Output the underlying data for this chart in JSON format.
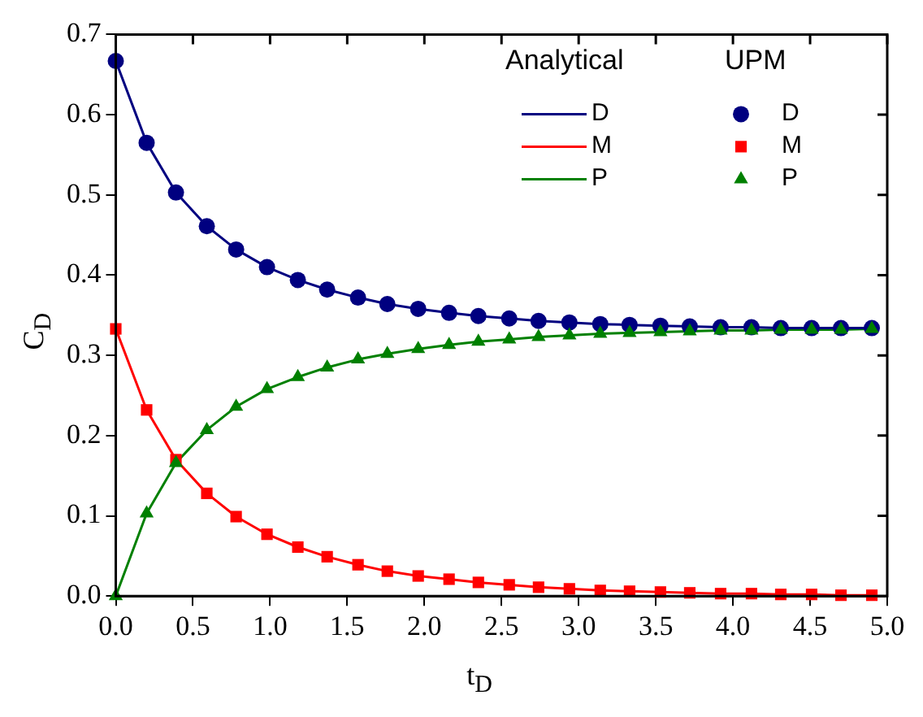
{
  "chart_data": {
    "type": "line",
    "xlabel": "t$_{D}$",
    "ylabel": "C$_{D}$",
    "x": [
      0,
      0.2,
      0.39,
      0.59,
      0.78,
      0.98,
      1.18,
      1.37,
      1.57,
      1.76,
      1.96,
      2.16,
      2.35,
      2.55,
      2.74,
      2.94,
      3.14,
      3.33,
      3.53,
      3.72,
      3.92,
      4.12,
      4.31,
      4.51,
      4.7,
      4.9
    ],
    "series": [
      {
        "name": "D",
        "marker": "none",
        "color": "#000080",
        "values": [
          0.667,
          0.565,
          0.503,
          0.461,
          0.432,
          0.41,
          0.394,
          0.382,
          0.372,
          0.364,
          0.358,
          0.353,
          0.349,
          0.346,
          0.343,
          0.341,
          0.339,
          0.338,
          0.337,
          0.336,
          0.335,
          0.335,
          0.334,
          0.334,
          0.334,
          0.334
        ]
      },
      {
        "name": "M",
        "marker": "none",
        "color": "#ff0000",
        "values": [
          0.333,
          0.232,
          0.17,
          0.128,
          0.099,
          0.077,
          0.061,
          0.049,
          0.039,
          0.031,
          0.025,
          0.021,
          0.017,
          0.014,
          0.011,
          0.009,
          0.007,
          0.006,
          0.005,
          0.004,
          0.003,
          0.003,
          0.002,
          0.002,
          0.001,
          0.001
        ]
      },
      {
        "name": "P",
        "marker": "none",
        "color": "#008000",
        "values": [
          0,
          0.103,
          0.166,
          0.207,
          0.236,
          0.258,
          0.273,
          0.285,
          0.295,
          0.302,
          0.308,
          0.313,
          0.317,
          0.32,
          0.323,
          0.325,
          0.327,
          0.328,
          0.329,
          0.33,
          0.331,
          0.331,
          0.332,
          0.332,
          0.332,
          0.333
        ]
      },
      {
        "name": "D",
        "type": "scatter",
        "marker": "circle",
        "color": "#000080",
        "values": [
          0.667,
          0.565,
          0.503,
          0.461,
          0.432,
          0.41,
          0.394,
          0.382,
          0.372,
          0.364,
          0.358,
          0.353,
          0.349,
          0.346,
          0.343,
          0.341,
          0.339,
          0.338,
          0.337,
          0.336,
          0.335,
          0.335,
          0.334,
          0.334,
          0.334,
          0.334
        ]
      },
      {
        "name": "M",
        "type": "scatter",
        "marker": "square",
        "color": "#ff0000",
        "values": [
          0.333,
          0.232,
          0.17,
          0.128,
          0.099,
          0.077,
          0.061,
          0.049,
          0.039,
          0.031,
          0.025,
          0.021,
          0.017,
          0.014,
          0.011,
          0.009,
          0.007,
          0.006,
          0.005,
          0.004,
          0.003,
          0.003,
          0.002,
          0.002,
          0.001,
          0.001
        ]
      },
      {
        "name": "P",
        "type": "scatter",
        "marker": "triangle",
        "color": "#008000",
        "values": [
          0,
          0.103,
          0.166,
          0.207,
          0.236,
          0.258,
          0.273,
          0.285,
          0.295,
          0.302,
          0.308,
          0.313,
          0.317,
          0.32,
          0.323,
          0.325,
          0.327,
          0.328,
          0.329,
          0.33,
          0.331,
          0.331,
          0.332,
          0.332,
          0.332,
          0.333
        ]
      }
    ],
    "annotations": [
      "Analytical",
      "UPM"
    ],
    "legend": "top right",
    "grid": false,
    "xlim": [
      0,
      5
    ],
    "xticks": [
      {
        "value": 0,
        "label": "0.0"
      },
      {
        "value": 0.5,
        "label": "0.5"
      },
      {
        "value": 1,
        "label": "1.0"
      },
      {
        "value": 1.5,
        "label": "1.5"
      },
      {
        "value": 2,
        "label": "2.0"
      },
      {
        "value": 2.5,
        "label": "2.5"
      },
      {
        "value": 3,
        "label": "3.0"
      },
      {
        "value": 3.5,
        "label": "3.5"
      },
      {
        "value": 4,
        "label": "4.0"
      },
      {
        "value": 4.5,
        "label": "4.5"
      },
      {
        "value": 5,
        "label": "5.0"
      }
    ],
    "ylim": [
      0,
      0.7
    ],
    "yticks": [
      {
        "value": 0,
        "label": "0.0"
      },
      {
        "value": 0.1,
        "label": "0.1"
      },
      {
        "value": 0.2,
        "label": "0.2"
      },
      {
        "value": 0.3,
        "label": "0.3"
      },
      {
        "value": 0.4,
        "label": "0.4"
      },
      {
        "value": 0.5,
        "label": "0.5"
      },
      {
        "value": 0.6,
        "label": "0.6"
      },
      {
        "value": 0.7,
        "label": "0.7"
      }
    ]
  }
}
